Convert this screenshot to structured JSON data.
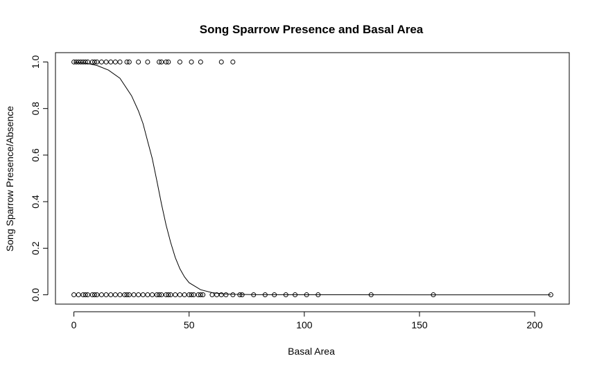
{
  "chart_data": {
    "type": "scatter",
    "title": "Song Sparrow Presence and Basal Area",
    "xlabel": "Basal Area",
    "ylabel": "Song Sparrow Presence/Absence",
    "xlim": [
      -8,
      215
    ],
    "ylim": [
      -0.04,
      1.04
    ],
    "xticks": [
      "0",
      "50",
      "100",
      "150",
      "200"
    ],
    "yticks": [
      "0.0",
      "0.2",
      "0.4",
      "0.6",
      "0.8",
      "1.0"
    ],
    "grid": false,
    "series": [
      {
        "marker": "open-circle",
        "points": [
          [
            0,
            1
          ],
          [
            1,
            1
          ],
          [
            2,
            1
          ],
          [
            3,
            1
          ],
          [
            4,
            1
          ],
          [
            5,
            1
          ],
          [
            6,
            1
          ],
          [
            8,
            1
          ],
          [
            9,
            1
          ],
          [
            10,
            1
          ],
          [
            12,
            1
          ],
          [
            14,
            1
          ],
          [
            16,
            1
          ],
          [
            18,
            1
          ],
          [
            20,
            1
          ],
          [
            23,
            1
          ],
          [
            24,
            1
          ],
          [
            28,
            1
          ],
          [
            32,
            1
          ],
          [
            37,
            1
          ],
          [
            38,
            1
          ],
          [
            40,
            1
          ],
          [
            41,
            1
          ],
          [
            46,
            1
          ],
          [
            51,
            1
          ],
          [
            55,
            1
          ],
          [
            64,
            1
          ],
          [
            69,
            1
          ],
          [
            0,
            0
          ],
          [
            2,
            0
          ],
          [
            4,
            0
          ],
          [
            5,
            0
          ],
          [
            6,
            0
          ],
          [
            8,
            0
          ],
          [
            9,
            0
          ],
          [
            10,
            0
          ],
          [
            12,
            0
          ],
          [
            14,
            0
          ],
          [
            16,
            0
          ],
          [
            18,
            0
          ],
          [
            20,
            0
          ],
          [
            22,
            0
          ],
          [
            23,
            0
          ],
          [
            24,
            0
          ],
          [
            26,
            0
          ],
          [
            28,
            0
          ],
          [
            30,
            0
          ],
          [
            32,
            0
          ],
          [
            34,
            0
          ],
          [
            36,
            0
          ],
          [
            37,
            0
          ],
          [
            38,
            0
          ],
          [
            40,
            0
          ],
          [
            41,
            0
          ],
          [
            42,
            0
          ],
          [
            44,
            0
          ],
          [
            46,
            0
          ],
          [
            48,
            0
          ],
          [
            50,
            0
          ],
          [
            51,
            0
          ],
          [
            52,
            0
          ],
          [
            54,
            0
          ],
          [
            55,
            0
          ],
          [
            56,
            0
          ],
          [
            60,
            0
          ],
          [
            62,
            0
          ],
          [
            64,
            0
          ],
          [
            66,
            0
          ],
          [
            69,
            0
          ],
          [
            72,
            0
          ],
          [
            73,
            0
          ],
          [
            78,
            0
          ],
          [
            83,
            0
          ],
          [
            87,
            0
          ],
          [
            92,
            0
          ],
          [
            96,
            0
          ],
          [
            101,
            0
          ],
          [
            106,
            0
          ],
          [
            129,
            0
          ],
          [
            156,
            0
          ],
          [
            207,
            0
          ]
        ]
      },
      {
        "line": "fitted-logistic",
        "x": [
          0,
          5,
          10,
          15,
          20,
          25,
          28,
          30,
          32,
          34,
          36,
          38,
          40,
          42,
          44,
          46,
          48,
          50,
          55,
          60,
          65,
          70,
          80,
          100,
          150,
          207
        ],
        "y": [
          0.999,
          0.995,
          0.985,
          0.965,
          0.93,
          0.855,
          0.79,
          0.735,
          0.66,
          0.585,
          0.49,
          0.39,
          0.3,
          0.225,
          0.16,
          0.112,
          0.077,
          0.052,
          0.022,
          0.009,
          0.004,
          0.002,
          0.0005,
          2e-05,
          0,
          0
        ]
      }
    ]
  }
}
